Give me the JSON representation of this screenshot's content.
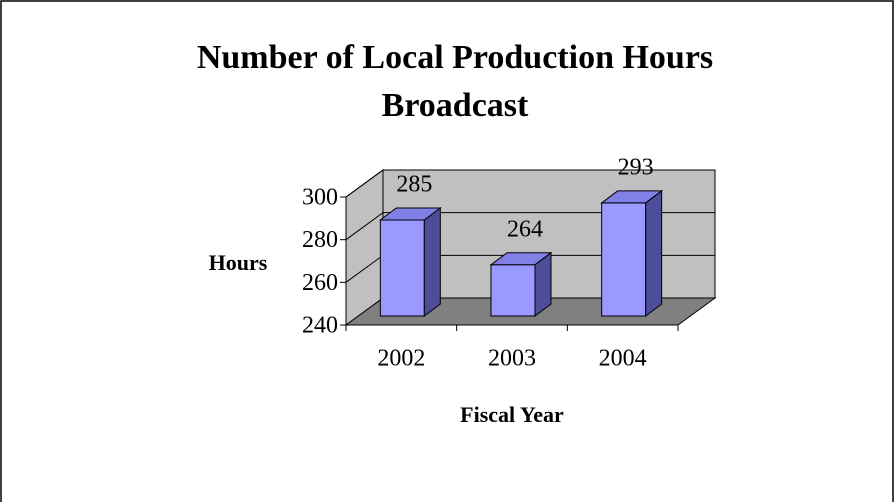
{
  "chart_data": {
    "type": "bar3d",
    "title": [
      "Number of Local Production Hours",
      "Broadcast"
    ],
    "x_label": "Fiscal Year",
    "y_label": "Hours",
    "categories": [
      "2002",
      "2003",
      "2004"
    ],
    "values": [
      285,
      264,
      293
    ],
    "color": "#9999ff",
    "ylim": [
      240,
      300
    ],
    "yticks": [
      240,
      260,
      280,
      300
    ],
    "grid": true
  }
}
